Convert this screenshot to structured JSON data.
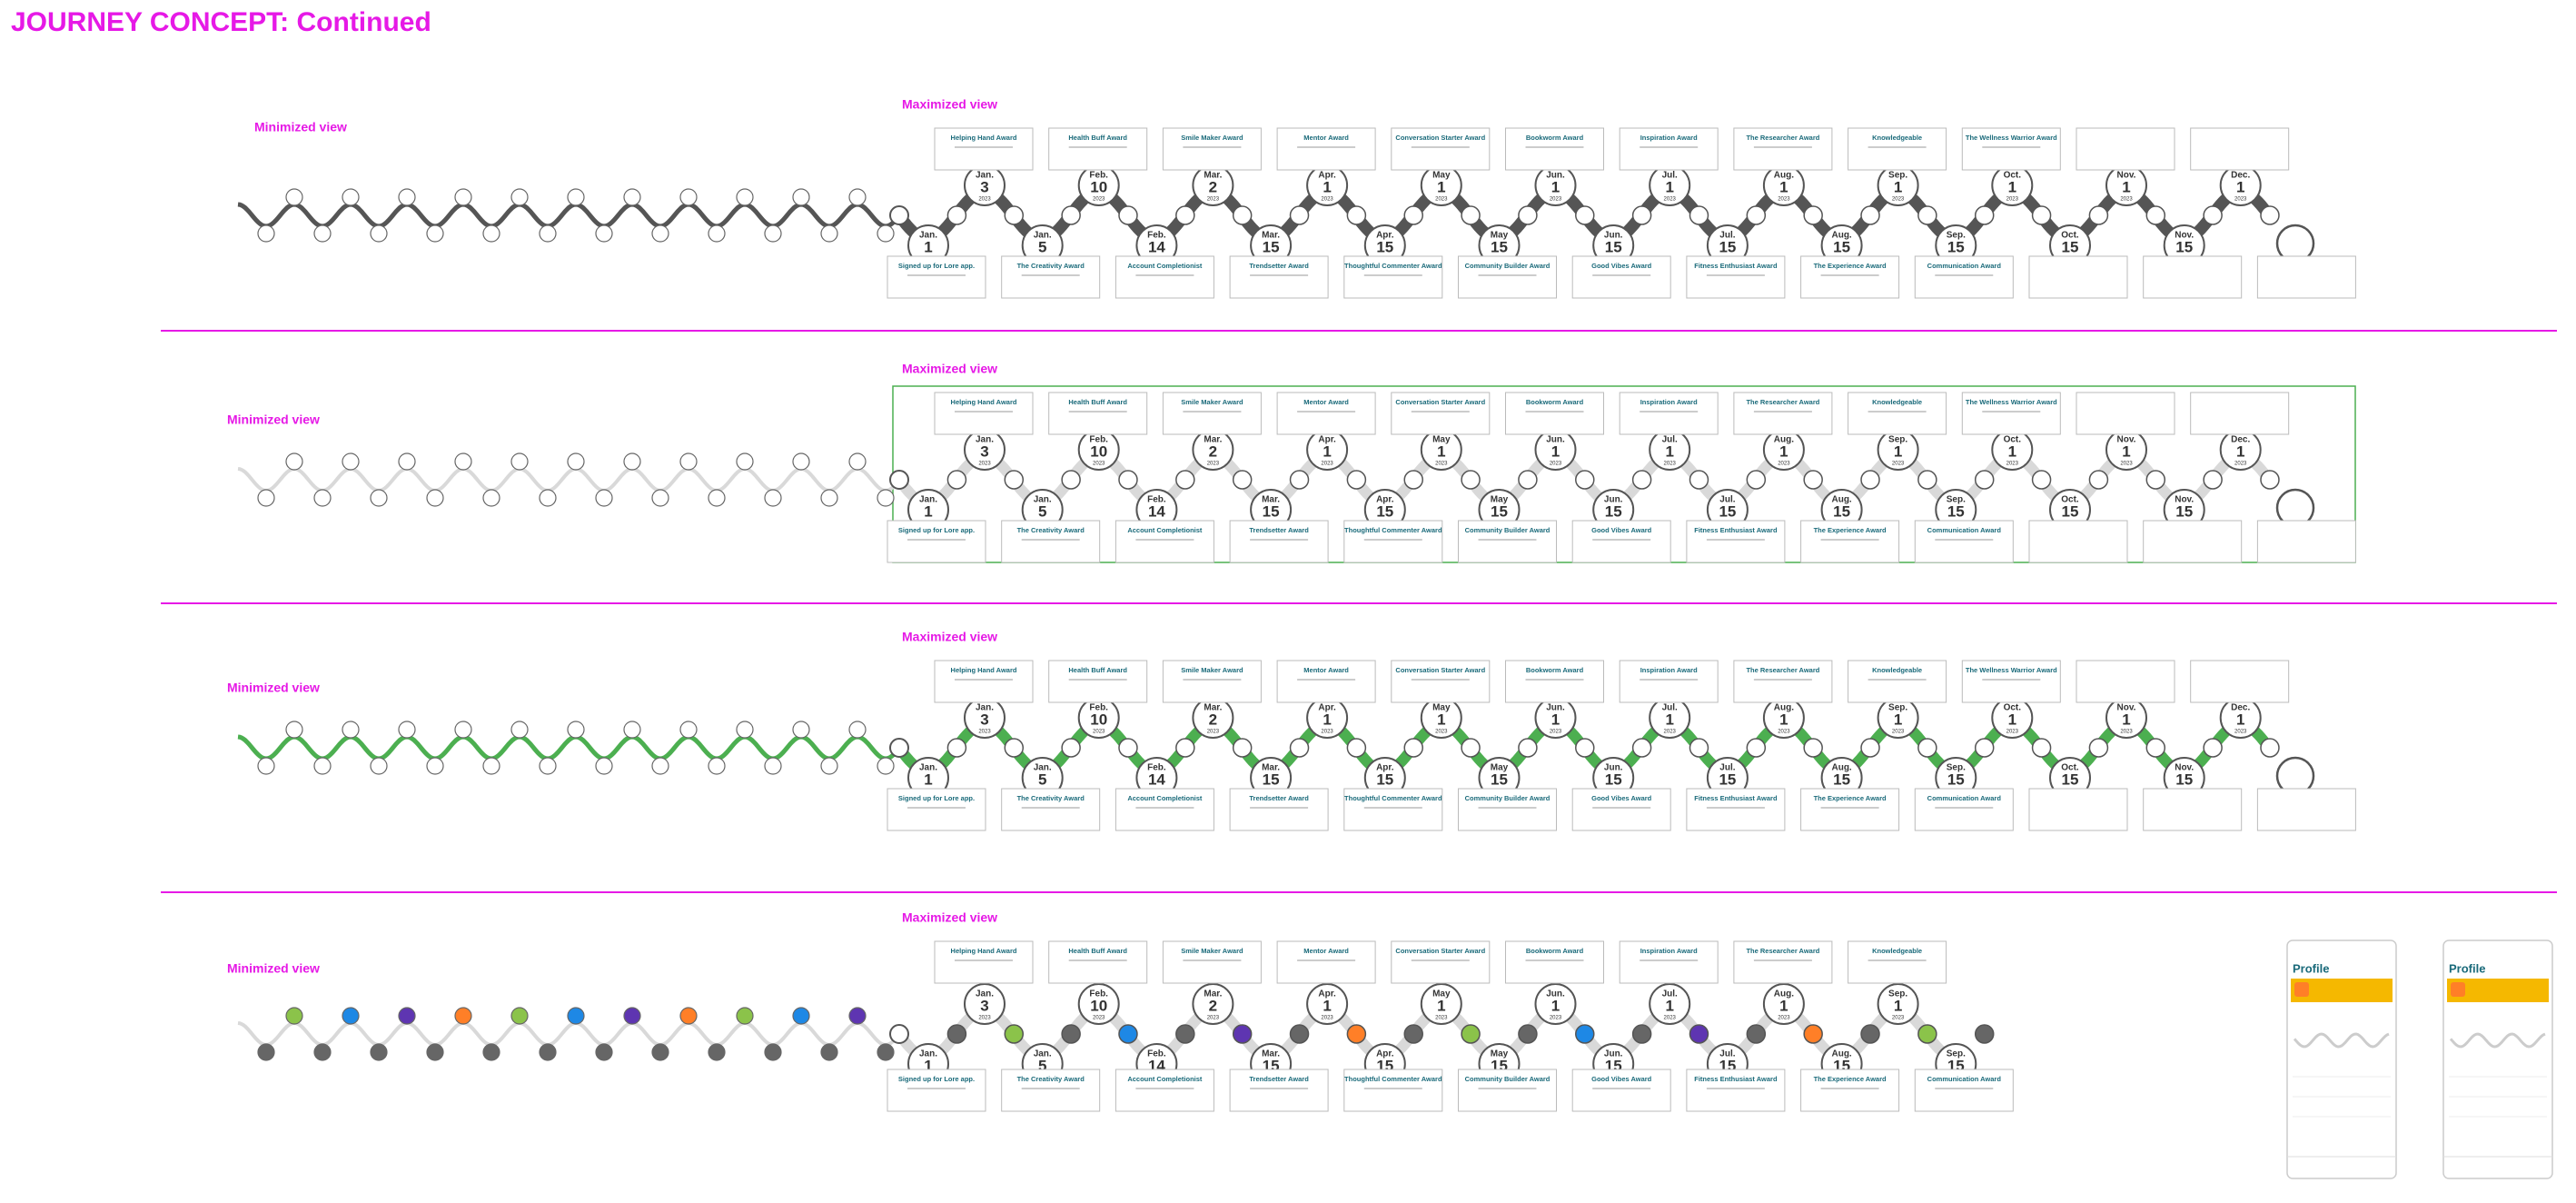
{
  "header": {
    "title": "JOURNEY CONCEPT: Continued"
  },
  "rows": [
    {
      "minimized_label": "Minimized view",
      "maximized_label": "Maximized view",
      "wave_color": "#555555",
      "node_colors": [
        "#ffffff"
      ],
      "frame": false,
      "placeholders": true,
      "awards_top": [
        "Helping Hand Award",
        "Health Buff Award",
        "Smile Maker Award",
        "Mentor Award",
        "Conversation Starter Award",
        "Bookworm Award",
        "Inspiration Award",
        "The Researcher Award",
        "Knowledgeable",
        "The Wellness Warrior Award"
      ],
      "awards_bottom": [
        "Signed up for Lore app.",
        "The Creativity Award",
        "Account Completionist",
        "Trendsetter Award",
        "Thoughtful Commenter Award",
        "Community Builder Award",
        "Good Vibes Award",
        "Fitness Enthusiast Award",
        "The Experience Award",
        "Communication Award"
      ],
      "dates_top": [
        [
          "Jan.",
          "3",
          "2023"
        ],
        [
          "Feb.",
          "10",
          "2023"
        ],
        [
          "Mar.",
          "2",
          "2023"
        ],
        [
          "Apr.",
          "1",
          "2023"
        ],
        [
          "May",
          "1",
          "2023"
        ],
        [
          "Jun.",
          "1",
          "2023"
        ],
        [
          "Jul.",
          "1",
          "2023"
        ],
        [
          "Aug.",
          "1",
          "2023"
        ],
        [
          "Sep.",
          "1",
          "2023"
        ],
        [
          "Oct.",
          "1",
          "2023"
        ],
        [
          "Nov.",
          "1",
          "2023"
        ],
        [
          "Dec.",
          "1",
          "2023"
        ]
      ],
      "dates_bottom": [
        [
          "Jan.",
          "1",
          "2023"
        ],
        [
          "Jan.",
          "5",
          "2023"
        ],
        [
          "Feb.",
          "14",
          "2023"
        ],
        [
          "Mar.",
          "15",
          "2023"
        ],
        [
          "Apr.",
          "15",
          "2023"
        ],
        [
          "May",
          "15",
          "2023"
        ],
        [
          "Jun.",
          "15",
          "2023"
        ],
        [
          "Jul.",
          "15",
          "2023"
        ],
        [
          "Aug.",
          "15",
          "2023"
        ],
        [
          "Sep.",
          "15",
          "2023"
        ],
        [
          "Oct.",
          "15",
          "2023"
        ],
        [
          "Nov.",
          "15",
          "2023"
        ]
      ]
    },
    {
      "minimized_label": "Minimized view",
      "maximized_label": "Maximized view",
      "wave_color": "#d9d9d9",
      "node_colors": [
        "#ffffff"
      ],
      "frame": true,
      "placeholders": true,
      "awards_top": [
        "Helping Hand Award",
        "Health Buff Award",
        "Smile Maker Award",
        "Mentor Award",
        "Conversation Starter Award",
        "Bookworm Award",
        "Inspiration Award",
        "The Researcher Award",
        "Knowledgeable",
        "The Wellness Warrior Award"
      ],
      "awards_bottom": [
        "Signed up for Lore app.",
        "The Creativity Award",
        "Account Completionist",
        "Trendsetter Award",
        "Thoughtful Commenter Award",
        "Community Builder Award",
        "Good Vibes Award",
        "Fitness Enthusiast Award",
        "The Experience Award",
        "Communication Award"
      ],
      "dates_top": [
        [
          "Jan.",
          "3",
          "2023"
        ],
        [
          "Feb.",
          "10",
          "2023"
        ],
        [
          "Mar.",
          "2",
          "2023"
        ],
        [
          "Apr.",
          "1",
          "2023"
        ],
        [
          "May",
          "1",
          "2023"
        ],
        [
          "Jun.",
          "1",
          "2023"
        ],
        [
          "Jul.",
          "1",
          "2023"
        ],
        [
          "Aug.",
          "1",
          "2023"
        ],
        [
          "Sep.",
          "1",
          "2023"
        ],
        [
          "Oct.",
          "1",
          "2023"
        ],
        [
          "Nov.",
          "1",
          "2023"
        ],
        [
          "Dec.",
          "1",
          "2023"
        ]
      ],
      "dates_bottom": [
        [
          "Jan.",
          "1",
          "2023"
        ],
        [
          "Jan.",
          "5",
          "2023"
        ],
        [
          "Feb.",
          "14",
          "2023"
        ],
        [
          "Mar.",
          "15",
          "2023"
        ],
        [
          "Apr.",
          "15",
          "2023"
        ],
        [
          "May",
          "15",
          "2023"
        ],
        [
          "Jun.",
          "15",
          "2023"
        ],
        [
          "Jul.",
          "15",
          "2023"
        ],
        [
          "Aug.",
          "15",
          "2023"
        ],
        [
          "Sep.",
          "15",
          "2023"
        ],
        [
          "Oct.",
          "15",
          "2023"
        ],
        [
          "Nov.",
          "15",
          "2023"
        ]
      ]
    },
    {
      "minimized_label": "Minimized view",
      "maximized_label": "Maximized view",
      "wave_color": "#4caf50",
      "node_colors": [
        "#ffffff"
      ],
      "frame": false,
      "placeholders": true,
      "awards_top": [
        "Helping Hand Award",
        "Health Buff Award",
        "Smile Maker Award",
        "Mentor Award",
        "Conversation Starter Award",
        "Bookworm Award",
        "Inspiration Award",
        "The Researcher Award",
        "Knowledgeable",
        "The Wellness Warrior Award"
      ],
      "awards_bottom": [
        "Signed up for Lore app.",
        "The Creativity Award",
        "Account Completionist",
        "Trendsetter Award",
        "Thoughtful Commenter Award",
        "Community Builder Award",
        "Good Vibes Award",
        "Fitness Enthusiast Award",
        "The Experience Award",
        "Communication Award"
      ],
      "dates_top": [
        [
          "Jan.",
          "3",
          "2023"
        ],
        [
          "Feb.",
          "10",
          "2023"
        ],
        [
          "Mar.",
          "2",
          "2023"
        ],
        [
          "Apr.",
          "1",
          "2023"
        ],
        [
          "May",
          "1",
          "2023"
        ],
        [
          "Jun.",
          "1",
          "2023"
        ],
        [
          "Jul.",
          "1",
          "2023"
        ],
        [
          "Aug.",
          "1",
          "2023"
        ],
        [
          "Sep.",
          "1",
          "2023"
        ],
        [
          "Oct.",
          "1",
          "2023"
        ],
        [
          "Nov.",
          "1",
          "2023"
        ],
        [
          "Dec.",
          "1",
          "2023"
        ]
      ],
      "dates_bottom": [
        [
          "Jan.",
          "1",
          "2023"
        ],
        [
          "Jan.",
          "5",
          "2023"
        ],
        [
          "Feb.",
          "14",
          "2023"
        ],
        [
          "Mar.",
          "15",
          "2023"
        ],
        [
          "Apr.",
          "15",
          "2023"
        ],
        [
          "May",
          "15",
          "2023"
        ],
        [
          "Jun.",
          "15",
          "2023"
        ],
        [
          "Jul.",
          "15",
          "2023"
        ],
        [
          "Aug.",
          "15",
          "2023"
        ],
        [
          "Sep.",
          "15",
          "2023"
        ],
        [
          "Oct.",
          "15",
          "2023"
        ],
        [
          "Nov.",
          "15",
          "2023"
        ]
      ]
    },
    {
      "minimized_label": "Minimized view",
      "maximized_label": "Maximized view",
      "wave_color": "#d9d9d9",
      "node_colors": [
        "#666666",
        "#8bc34a",
        "#666666",
        "#1e88e5",
        "#666666",
        "#5e35b1",
        "#666666",
        "#ff7f27"
      ],
      "frame": false,
      "placeholders": false,
      "awards_top": [
        "Helping Hand Award",
        "Health Buff Award",
        "Smile Maker Award",
        "Mentor Award",
        "Conversation Starter Award",
        "Bookworm Award",
        "Inspiration Award",
        "The Researcher Award",
        "Knowledgeable"
      ],
      "awards_bottom": [
        "Signed up for Lore app.",
        "The Creativity Award",
        "Account Completionist",
        "Trendsetter Award",
        "Thoughtful Commenter Award",
        "Community Builder Award",
        "Good Vibes Award",
        "Fitness Enthusiast Award",
        "The Experience Award",
        "Communication Award"
      ],
      "dates_top": [
        [
          "Jan.",
          "3",
          "2023"
        ],
        [
          "Feb.",
          "10",
          "2023"
        ],
        [
          "Mar.",
          "2",
          "2023"
        ],
        [
          "Apr.",
          "1",
          "2023"
        ],
        [
          "May",
          "1",
          "2023"
        ],
        [
          "Jun.",
          "1",
          "2023"
        ],
        [
          "Jul.",
          "1",
          "2023"
        ],
        [
          "Aug.",
          "1",
          "2023"
        ],
        [
          "Sep.",
          "1",
          "2023"
        ]
      ],
      "dates_bottom": [
        [
          "Jan.",
          "1",
          "2023"
        ],
        [
          "Jan.",
          "5",
          "2023"
        ],
        [
          "Feb.",
          "14",
          "2023"
        ],
        [
          "Mar.",
          "15",
          "2023"
        ],
        [
          "Apr.",
          "15",
          "2023"
        ],
        [
          "May",
          "15",
          "2023"
        ],
        [
          "Jun.",
          "15",
          "2023"
        ],
        [
          "Jul.",
          "15",
          "2023"
        ],
        [
          "Aug.",
          "15",
          "2023"
        ],
        [
          "Sep.",
          "15",
          "2023"
        ]
      ]
    }
  ],
  "phones": [
    {
      "title": "Profile"
    },
    {
      "title": "Profile"
    }
  ]
}
